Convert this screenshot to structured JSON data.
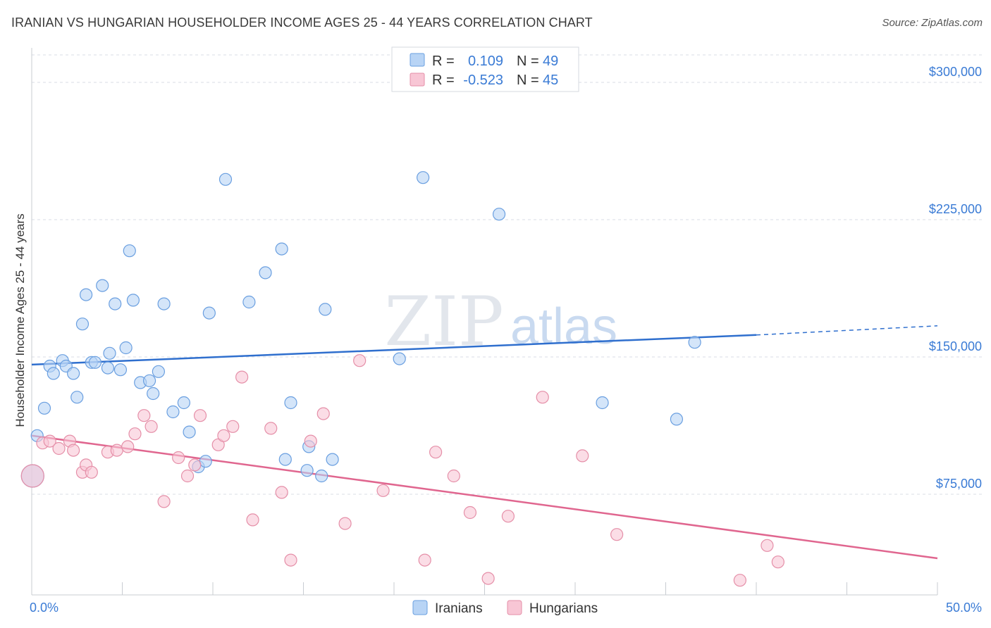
{
  "title": "IRANIAN VS HUNGARIAN HOUSEHOLDER INCOME AGES 25 - 44 YEARS CORRELATION CHART",
  "source": "Source: ZipAtlas.com",
  "watermark": {
    "zip": "ZIP",
    "atlas": "atlas"
  },
  "colors": {
    "iranians_fill": "#b8d4f5",
    "iranians_stroke": "#6a9fe0",
    "iranians_line": "#2f6fce",
    "hungarians_fill": "#f8c6d5",
    "hungarians_stroke": "#e58fa8",
    "hungarians_line": "#e0668f",
    "grid": "#d8dde4",
    "tick_text": "#3a7bd5"
  },
  "legend_box": {
    "rows": [
      {
        "r_label": "R =",
        "r_value": "0.109",
        "n_label": "N =",
        "n_value": "49"
      },
      {
        "r_label": "R =",
        "r_value": "-0.523",
        "n_label": "N =",
        "n_value": "45"
      }
    ]
  },
  "bottom_legend": [
    "Iranians",
    "Hungarians"
  ],
  "chart_data": {
    "type": "scatter",
    "title": "IRANIAN VS HUNGARIAN HOUSEHOLDER INCOME AGES 25 - 44 YEARS CORRELATION CHART",
    "xlabel": "",
    "ylabel": "Householder Income Ages 25 - 44 years",
    "xlim": [
      0,
      50
    ],
    "ylim": [
      20000,
      315000
    ],
    "x_tick_labels": [
      "0.0%",
      "50.0%"
    ],
    "y_ticks": [
      75000,
      150000,
      225000,
      300000
    ],
    "y_tick_labels": [
      "$75,000",
      "$150,000",
      "$225,000",
      "$300,000"
    ],
    "grid": true,
    "series": [
      {
        "name": "Iranians",
        "r": 0.109,
        "n": 49,
        "trend": {
          "x0": 0,
          "y0": 145800,
          "x1": 40,
          "y1": 162000,
          "dashed_to_x": 50,
          "dashed_to_y": 167000
        },
        "points": [
          [
            0.3,
            107000
          ],
          [
            1.0,
            145000
          ],
          [
            1.2,
            141000
          ],
          [
            0.7,
            122000
          ],
          [
            1.7,
            148000
          ],
          [
            1.9,
            145000
          ],
          [
            2.3,
            141000
          ],
          [
            2.5,
            128000
          ],
          [
            2.8,
            168000
          ],
          [
            3.0,
            184000
          ],
          [
            3.3,
            147000
          ],
          [
            3.5,
            147000
          ],
          [
            3.9,
            189000
          ],
          [
            4.2,
            144000
          ],
          [
            4.3,
            152000
          ],
          [
            4.6,
            179000
          ],
          [
            4.9,
            143000
          ],
          [
            5.2,
            155000
          ],
          [
            5.4,
            208000
          ],
          [
            5.6,
            181000
          ],
          [
            6.0,
            136000
          ],
          [
            6.5,
            137000
          ],
          [
            6.7,
            130000
          ],
          [
            7.0,
            142000
          ],
          [
            7.3,
            179000
          ],
          [
            7.8,
            120000
          ],
          [
            8.4,
            125000
          ],
          [
            8.7,
            109000
          ],
          [
            9.2,
            90000
          ],
          [
            9.6,
            93000
          ],
          [
            9.8,
            174000
          ],
          [
            10.7,
            247000
          ],
          [
            12.0,
            180000
          ],
          [
            12.9,
            196000
          ],
          [
            13.8,
            209000
          ],
          [
            14.0,
            94000
          ],
          [
            14.3,
            125000
          ],
          [
            15.2,
            88000
          ],
          [
            15.3,
            101000
          ],
          [
            16.0,
            85000
          ],
          [
            16.2,
            176000
          ],
          [
            16.6,
            94000
          ],
          [
            20.3,
            149000
          ],
          [
            21.6,
            248000
          ],
          [
            25.8,
            228000
          ],
          [
            31.5,
            125000
          ],
          [
            35.6,
            116000
          ],
          [
            36.6,
            158000
          ],
          [
            0.05,
            85000
          ]
        ]
      },
      {
        "name": "Hungarians",
        "r": -0.523,
        "n": 45,
        "trend": {
          "x0": 0,
          "y0": 107000,
          "x1": 50,
          "y1": 40000
        },
        "points": [
          [
            0.6,
            103000
          ],
          [
            1.0,
            104000
          ],
          [
            1.5,
            100000
          ],
          [
            2.1,
            104000
          ],
          [
            2.3,
            99000
          ],
          [
            2.8,
            87000
          ],
          [
            3.0,
            91000
          ],
          [
            3.3,
            87000
          ],
          [
            4.2,
            98000
          ],
          [
            4.7,
            99000
          ],
          [
            5.3,
            101000
          ],
          [
            5.7,
            108000
          ],
          [
            6.2,
            118000
          ],
          [
            6.6,
            112000
          ],
          [
            7.3,
            71000
          ],
          [
            8.1,
            95000
          ],
          [
            8.6,
            85000
          ],
          [
            9.0,
            91000
          ],
          [
            9.3,
            118000
          ],
          [
            10.3,
            102000
          ],
          [
            10.6,
            107000
          ],
          [
            11.1,
            112000
          ],
          [
            11.6,
            139000
          ],
          [
            12.2,
            61000
          ],
          [
            13.2,
            111000
          ],
          [
            13.8,
            76000
          ],
          [
            14.3,
            39000
          ],
          [
            15.4,
            104000
          ],
          [
            16.1,
            119000
          ],
          [
            17.3,
            59000
          ],
          [
            18.1,
            148000
          ],
          [
            19.4,
            77000
          ],
          [
            21.7,
            39000
          ],
          [
            22.3,
            98000
          ],
          [
            23.3,
            85000
          ],
          [
            24.2,
            65000
          ],
          [
            25.2,
            29000
          ],
          [
            26.3,
            63000
          ],
          [
            28.2,
            128000
          ],
          [
            30.4,
            96000
          ],
          [
            32.3,
            53000
          ],
          [
            39.1,
            28000
          ],
          [
            40.6,
            47000
          ],
          [
            41.2,
            38000
          ],
          [
            0.05,
            85000
          ]
        ]
      }
    ]
  }
}
